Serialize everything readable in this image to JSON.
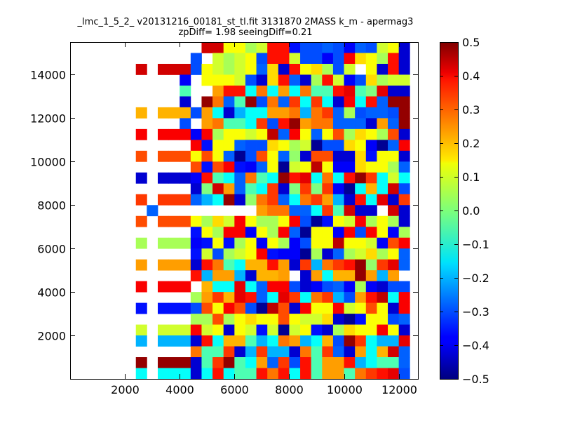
{
  "chart_data": {
    "type": "heatmap",
    "title_line1": "_lmc_1_5_2_ v20131216_00181_st_tl.fit 3131870 2MASS k_m - apermag3",
    "title_line2": "zpDiff= 1.98 seeingDiff=0.21",
    "xlabel": "",
    "ylabel": "",
    "xlim": [
      0,
      12700
    ],
    "ylim": [
      0,
      15500
    ],
    "x_ticks": [
      2000,
      4000,
      6000,
      8000,
      10000,
      12000
    ],
    "x_tick_labels": [
      "2000",
      "4000",
      "6000",
      "8000",
      "10000",
      "12000"
    ],
    "y_ticks": [
      2000,
      4000,
      6000,
      8000,
      10000,
      12000,
      14000
    ],
    "y_tick_labels": [
      "2000",
      "4000",
      "6000",
      "8000",
      "10000",
      "12000",
      "14000"
    ],
    "colorbar": {
      "colormap": "jet",
      "range": [
        -0.5,
        0.5
      ],
      "ticks": [
        0.5,
        0.4,
        0.3,
        0.2,
        0.1,
        0.0,
        -0.1,
        -0.2,
        -0.3,
        -0.4,
        -0.5
      ],
      "tick_labels": [
        "0.5",
        "0.4",
        "0.3",
        "0.2",
        "0.1",
        "0.0",
        "−0.1",
        "−0.2",
        "−0.3",
        "−0.4",
        "−0.5"
      ]
    },
    "grid": {
      "x_start": 0,
      "cell_width": 400,
      "y_start": 0,
      "cell_height": 500,
      "n_cols": 32,
      "n_rows": 31,
      "rows_top_to_bottom": [
        "...........6WWHHGKRRJDDBDEBDKHC",
        "...........D.KGKHDRRKDDEDFLHGRC",
        "......W.WWWDHKGKHBLCRHLGDK.HCRC",
        "..........E.HHHKDCLRBCGRKEDLGKK",
        "..........Z..QRRSXSQSXZZRVZYVCC",
        "..........C.AXBZADXBPSPSCFSRBAA",
        "......T.TTTDQSCUSSQQXUXPBGDBBDA",
        "..........D.QXZZSPDRAQXXBBBCQBA",
        "......F.FFFEFGHHKHNBFHBHIGLHGIC",
        "...........FJHHBDDLHGKMDDLHEMBF",
        "......I.IIIHIHBMDIHBOCIICCLJHHC",
        "...........IJIFJEBHMKHNHEELHHGB",
        "......C.CCCERZSBXZSARVSXSRAPSKS",
        "...........CYWQBZSPCYPYPEMSTSWD",
        "......P.PPPBUSACOXPBSXPQUCRSVCP",
        ".......B.........QXXBBSPZWCC.WC",
        "......I.IIIHGLKFHGGHFDMJHKFGHGC",
        "...........JHGFFEHGFBMHHEFDFHEG",
        "......G.GGGEJHJGHEHGEDHHNHHKEIF",
        "...........JKDGKHFJEEMGCBGKLGHB",
        "......Q.QQQCRXZSTTRQCPUXPRAOPVB",
        "...........RUQQUCTTQ.CQSTTAQUQ.",
        "......F.FFF.TSSVSBFFDCEDBEGECDD",
        "...........GQPTVRBSVPSXPUDQRNSF",
        "......J.JJJDIHFIDMNICFHHFKHIHCF",
        "...........GGIGHLHHIHKKLCMJHHDB",
        "......K.KKKFKHCHKJKMKHJCGLHHFHC",
        "......U.UUUCRSTTZUSXQUSTDAPSUUV",
        "...........XZZPCUPUUCXZPBCQSTWB",
        "......A.AAACZPAZSQBPDRZQQRUSZZB",
        "......S.SSSCSRSZZRXRSRZQQZXPRVD"
      ]
    },
    "level_codes": {
      "A": 0.48,
      "B": -0.28,
      "C": -0.42,
      "D": -0.3,
      "E": -0.38,
      "F": 0.38,
      "G": 0.04,
      "H": 0.12,
      "I": 0.3,
      "J": -0.36,
      "K": 0.08,
      "L": 0.16,
      "M": -0.48,
      "N": 0.44,
      "O": 0.02,
      "P": 0.32,
      "Q": 0.22,
      "R": 0.36,
      "S": -0.12,
      "T": 0.2,
      "U": -0.2,
      "V": 0.4,
      "W": 0.42,
      "X": 0.26,
      "Y": 0.0,
      "Z": -0.05
    }
  }
}
